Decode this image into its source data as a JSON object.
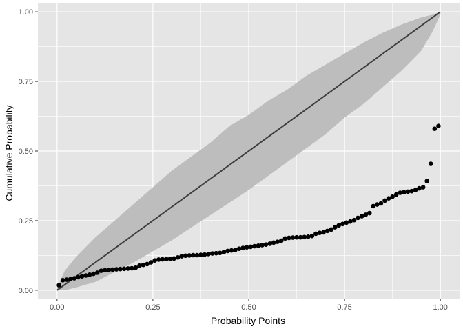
{
  "chart_data": {
    "type": "scatter",
    "xlabel": "Probability Points",
    "ylabel": "Cumulative Probability",
    "xlim": [
      -0.05,
      1.05
    ],
    "ylim": [
      -0.03,
      1.03
    ],
    "x_ticks": [
      0,
      0.25,
      0.5,
      0.75,
      1
    ],
    "x_tick_labels": [
      "0.00",
      "0.25",
      "0.50",
      "0.75",
      "1.00"
    ],
    "y_ticks": [
      0,
      0.25,
      0.5,
      0.75,
      1
    ],
    "y_tick_labels": [
      "0.00",
      "0.25",
      "0.50",
      "0.75",
      "1.00"
    ],
    "grid": true,
    "background_color": "#e5e5e5",
    "grid_major_color": "#ffffff",
    "band_color": "#bdbdbd",
    "line_color": "#3d3d3d",
    "point_color": "#000000",
    "reference_line": {
      "x": [
        0,
        1
      ],
      "y": [
        0,
        1
      ]
    },
    "confidence_band": {
      "x": [
        0.0,
        0.02,
        0.05,
        0.1,
        0.15,
        0.2,
        0.25,
        0.3,
        0.35,
        0.4,
        0.45,
        0.5,
        0.55,
        0.6,
        0.65,
        0.7,
        0.75,
        0.8,
        0.85,
        0.9,
        0.95,
        0.98,
        1.0
      ],
      "upper": [
        0.01,
        0.07,
        0.12,
        0.19,
        0.25,
        0.31,
        0.37,
        0.43,
        0.48,
        0.53,
        0.59,
        0.63,
        0.68,
        0.72,
        0.77,
        0.81,
        0.85,
        0.89,
        0.925,
        0.955,
        0.98,
        0.99,
        1.0
      ],
      "lower": [
        0.0,
        0.0,
        0.01,
        0.03,
        0.065,
        0.1,
        0.14,
        0.18,
        0.225,
        0.27,
        0.315,
        0.36,
        0.41,
        0.46,
        0.51,
        0.56,
        0.62,
        0.67,
        0.73,
        0.79,
        0.86,
        0.93,
        0.99
      ]
    },
    "points": {
      "x": [
        0.005,
        0.015,
        0.025,
        0.035,
        0.045,
        0.055,
        0.065,
        0.075,
        0.085,
        0.095,
        0.105,
        0.115,
        0.125,
        0.135,
        0.145,
        0.155,
        0.165,
        0.175,
        0.185,
        0.195,
        0.205,
        0.215,
        0.225,
        0.235,
        0.245,
        0.255,
        0.265,
        0.275,
        0.285,
        0.295,
        0.305,
        0.315,
        0.325,
        0.335,
        0.345,
        0.355,
        0.365,
        0.375,
        0.385,
        0.395,
        0.405,
        0.415,
        0.425,
        0.435,
        0.445,
        0.455,
        0.465,
        0.475,
        0.485,
        0.495,
        0.505,
        0.515,
        0.525,
        0.535,
        0.545,
        0.555,
        0.565,
        0.575,
        0.585,
        0.595,
        0.605,
        0.615,
        0.625,
        0.635,
        0.645,
        0.655,
        0.665,
        0.675,
        0.685,
        0.695,
        0.705,
        0.715,
        0.725,
        0.735,
        0.745,
        0.755,
        0.765,
        0.775,
        0.785,
        0.795,
        0.805,
        0.815,
        0.825,
        0.835,
        0.845,
        0.855,
        0.865,
        0.875,
        0.885,
        0.895,
        0.905,
        0.915,
        0.925,
        0.935,
        0.945,
        0.955,
        0.965,
        0.975,
        0.985,
        0.995
      ],
      "y": [
        0.018,
        0.036,
        0.038,
        0.04,
        0.043,
        0.047,
        0.05,
        0.053,
        0.056,
        0.059,
        0.063,
        0.07,
        0.072,
        0.073,
        0.074,
        0.075,
        0.076,
        0.077,
        0.078,
        0.079,
        0.081,
        0.088,
        0.091,
        0.094,
        0.1,
        0.107,
        0.11,
        0.111,
        0.112,
        0.113,
        0.114,
        0.118,
        0.122,
        0.124,
        0.125,
        0.126,
        0.126,
        0.127,
        0.128,
        0.13,
        0.132,
        0.133,
        0.134,
        0.137,
        0.141,
        0.143,
        0.145,
        0.149,
        0.152,
        0.154,
        0.156,
        0.158,
        0.16,
        0.162,
        0.164,
        0.167,
        0.171,
        0.174,
        0.178,
        0.186,
        0.188,
        0.189,
        0.19,
        0.19,
        0.191,
        0.192,
        0.195,
        0.203,
        0.206,
        0.208,
        0.213,
        0.218,
        0.226,
        0.233,
        0.238,
        0.243,
        0.247,
        0.252,
        0.26,
        0.266,
        0.271,
        0.277,
        0.302,
        0.308,
        0.312,
        0.322,
        0.33,
        0.336,
        0.344,
        0.35,
        0.352,
        0.354,
        0.356,
        0.36,
        0.366,
        0.37,
        0.392,
        0.454,
        0.58,
        0.59
      ]
    }
  }
}
